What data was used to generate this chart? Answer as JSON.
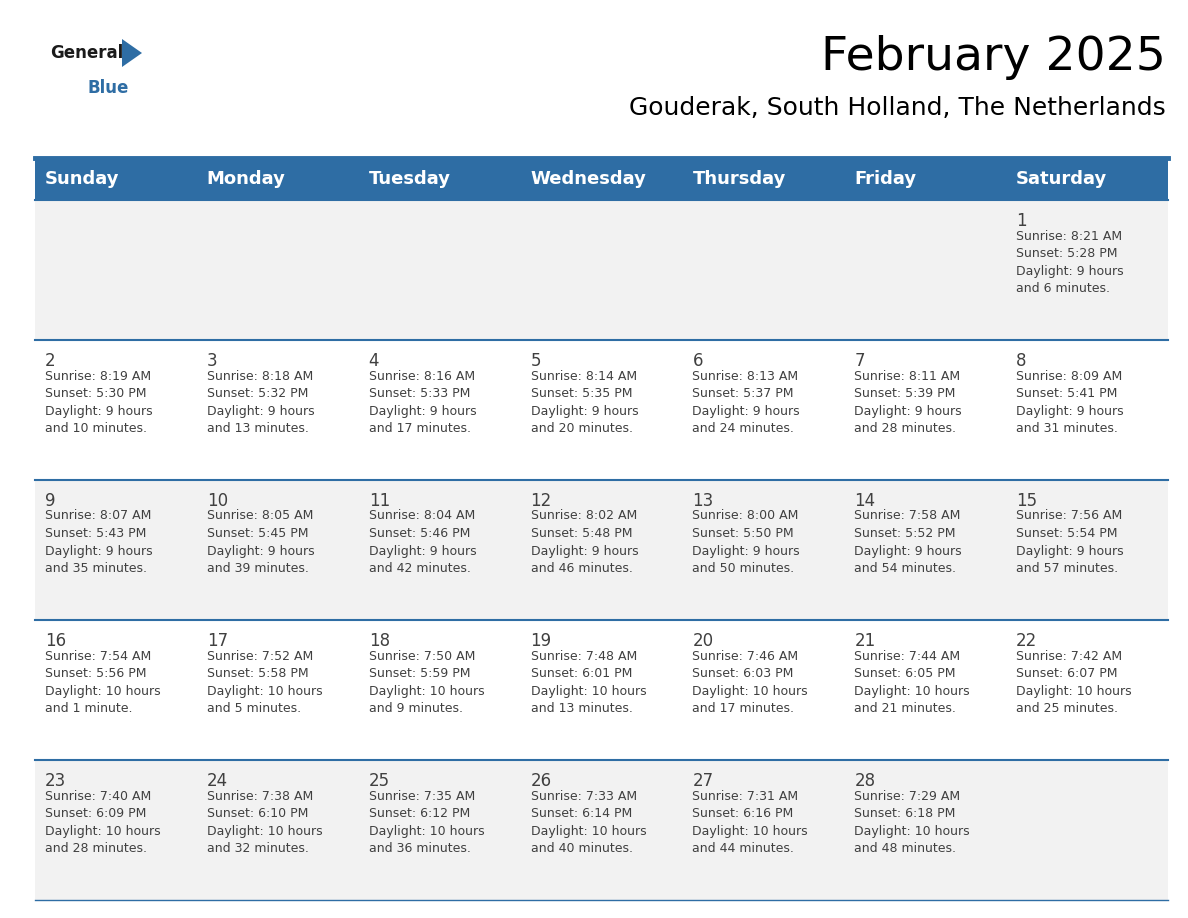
{
  "title": "February 2025",
  "subtitle": "Gouderak, South Holland, The Netherlands",
  "header_color": "#2E6DA4",
  "header_text_color": "#FFFFFF",
  "cell_bg_row0": "#F2F2F2",
  "cell_bg_row1": "#FFFFFF",
  "cell_bg_row2": "#F2F2F2",
  "cell_bg_row3": "#FFFFFF",
  "cell_bg_row4": "#F2F2F2",
  "separator_color": "#2E6DA4",
  "text_color": "#404040",
  "day_headers": [
    "Sunday",
    "Monday",
    "Tuesday",
    "Wednesday",
    "Thursday",
    "Friday",
    "Saturday"
  ],
  "days": [
    {
      "day": 1,
      "col": 6,
      "row": 0,
      "sunrise": "8:21 AM",
      "sunset": "5:28 PM",
      "daylight": "9 hours and 6 minutes."
    },
    {
      "day": 2,
      "col": 0,
      "row": 1,
      "sunrise": "8:19 AM",
      "sunset": "5:30 PM",
      "daylight": "9 hours and 10 minutes."
    },
    {
      "day": 3,
      "col": 1,
      "row": 1,
      "sunrise": "8:18 AM",
      "sunset": "5:32 PM",
      "daylight": "9 hours and 13 minutes."
    },
    {
      "day": 4,
      "col": 2,
      "row": 1,
      "sunrise": "8:16 AM",
      "sunset": "5:33 PM",
      "daylight": "9 hours and 17 minutes."
    },
    {
      "day": 5,
      "col": 3,
      "row": 1,
      "sunrise": "8:14 AM",
      "sunset": "5:35 PM",
      "daylight": "9 hours and 20 minutes."
    },
    {
      "day": 6,
      "col": 4,
      "row": 1,
      "sunrise": "8:13 AM",
      "sunset": "5:37 PM",
      "daylight": "9 hours and 24 minutes."
    },
    {
      "day": 7,
      "col": 5,
      "row": 1,
      "sunrise": "8:11 AM",
      "sunset": "5:39 PM",
      "daylight": "9 hours and 28 minutes."
    },
    {
      "day": 8,
      "col": 6,
      "row": 1,
      "sunrise": "8:09 AM",
      "sunset": "5:41 PM",
      "daylight": "9 hours and 31 minutes."
    },
    {
      "day": 9,
      "col": 0,
      "row": 2,
      "sunrise": "8:07 AM",
      "sunset": "5:43 PM",
      "daylight": "9 hours and 35 minutes."
    },
    {
      "day": 10,
      "col": 1,
      "row": 2,
      "sunrise": "8:05 AM",
      "sunset": "5:45 PM",
      "daylight": "9 hours and 39 minutes."
    },
    {
      "day": 11,
      "col": 2,
      "row": 2,
      "sunrise": "8:04 AM",
      "sunset": "5:46 PM",
      "daylight": "9 hours and 42 minutes."
    },
    {
      "day": 12,
      "col": 3,
      "row": 2,
      "sunrise": "8:02 AM",
      "sunset": "5:48 PM",
      "daylight": "9 hours and 46 minutes."
    },
    {
      "day": 13,
      "col": 4,
      "row": 2,
      "sunrise": "8:00 AM",
      "sunset": "5:50 PM",
      "daylight": "9 hours and 50 minutes."
    },
    {
      "day": 14,
      "col": 5,
      "row": 2,
      "sunrise": "7:58 AM",
      "sunset": "5:52 PM",
      "daylight": "9 hours and 54 minutes."
    },
    {
      "day": 15,
      "col": 6,
      "row": 2,
      "sunrise": "7:56 AM",
      "sunset": "5:54 PM",
      "daylight": "9 hours and 57 minutes."
    },
    {
      "day": 16,
      "col": 0,
      "row": 3,
      "sunrise": "7:54 AM",
      "sunset": "5:56 PM",
      "daylight": "10 hours and 1 minute."
    },
    {
      "day": 17,
      "col": 1,
      "row": 3,
      "sunrise": "7:52 AM",
      "sunset": "5:58 PM",
      "daylight": "10 hours and 5 minutes."
    },
    {
      "day": 18,
      "col": 2,
      "row": 3,
      "sunrise": "7:50 AM",
      "sunset": "5:59 PM",
      "daylight": "10 hours and 9 minutes."
    },
    {
      "day": 19,
      "col": 3,
      "row": 3,
      "sunrise": "7:48 AM",
      "sunset": "6:01 PM",
      "daylight": "10 hours and 13 minutes."
    },
    {
      "day": 20,
      "col": 4,
      "row": 3,
      "sunrise": "7:46 AM",
      "sunset": "6:03 PM",
      "daylight": "10 hours and 17 minutes."
    },
    {
      "day": 21,
      "col": 5,
      "row": 3,
      "sunrise": "7:44 AM",
      "sunset": "6:05 PM",
      "daylight": "10 hours and 21 minutes."
    },
    {
      "day": 22,
      "col": 6,
      "row": 3,
      "sunrise": "7:42 AM",
      "sunset": "6:07 PM",
      "daylight": "10 hours and 25 minutes."
    },
    {
      "day": 23,
      "col": 0,
      "row": 4,
      "sunrise": "7:40 AM",
      "sunset": "6:09 PM",
      "daylight": "10 hours and 28 minutes."
    },
    {
      "day": 24,
      "col": 1,
      "row": 4,
      "sunrise": "7:38 AM",
      "sunset": "6:10 PM",
      "daylight": "10 hours and 32 minutes."
    },
    {
      "day": 25,
      "col": 2,
      "row": 4,
      "sunrise": "7:35 AM",
      "sunset": "6:12 PM",
      "daylight": "10 hours and 36 minutes."
    },
    {
      "day": 26,
      "col": 3,
      "row": 4,
      "sunrise": "7:33 AM",
      "sunset": "6:14 PM",
      "daylight": "10 hours and 40 minutes."
    },
    {
      "day": 27,
      "col": 4,
      "row": 4,
      "sunrise": "7:31 AM",
      "sunset": "6:16 PM",
      "daylight": "10 hours and 44 minutes."
    },
    {
      "day": 28,
      "col": 5,
      "row": 4,
      "sunrise": "7:29 AM",
      "sunset": "6:18 PM",
      "daylight": "10 hours and 48 minutes."
    }
  ],
  "num_rows": 5,
  "num_cols": 7,
  "title_fontsize": 34,
  "subtitle_fontsize": 18,
  "day_header_fontsize": 13,
  "day_num_fontsize": 12,
  "cell_text_fontsize": 9
}
